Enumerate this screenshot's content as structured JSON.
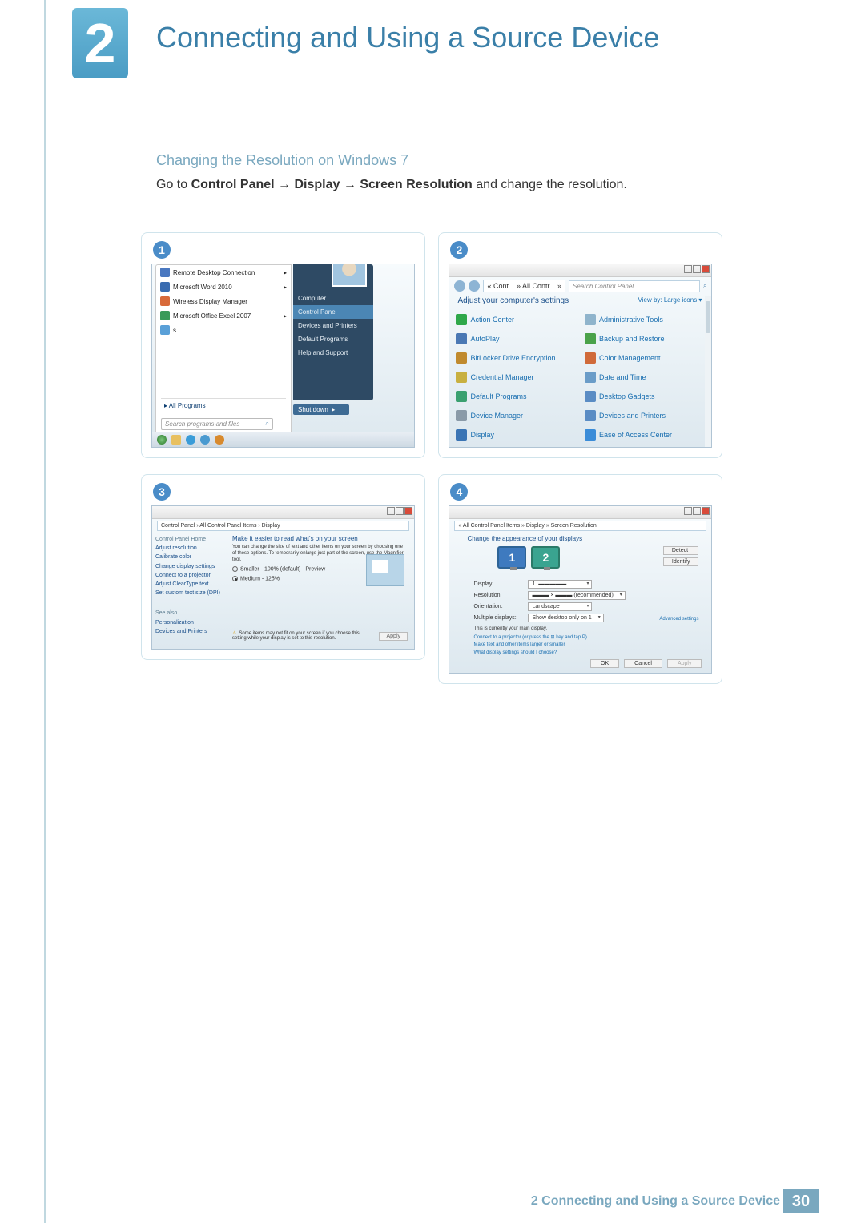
{
  "header": {
    "chapter_number": "2",
    "chapter_title": "Connecting and Using a Source Device"
  },
  "section": {
    "subtitle": "Changing the Resolution on Windows 7",
    "instruction_pre": "Go to ",
    "path_a": "Control Panel",
    "path_b": "Display",
    "path_c": "Screen Resolution",
    "instruction_post": " and change the resolution."
  },
  "steps": {
    "s1": "1",
    "s2": "2",
    "s3": "3",
    "s4": "4"
  },
  "start_menu": {
    "items": [
      "Remote Desktop Connection",
      "Microsoft Word 2010",
      "Wireless Display Manager",
      "Microsoft Office Excel 2007"
    ],
    "all_programs": "All Programs",
    "search_placeholder": "Search programs and files",
    "right": {
      "computer": "Computer",
      "control_panel": "Control Panel",
      "devices": "Devices and Printers",
      "defaults": "Default Programs",
      "help": "Help and Support"
    },
    "shutdown": "Shut down"
  },
  "control_panel": {
    "breadcrumb": "« Cont... » All Contr... »",
    "search_placeholder": "Search Control Panel",
    "heading": "Adjust your computer's settings",
    "view_by": "View by:  Large icons ▾",
    "items": [
      {
        "label": "Action Center",
        "color": "#2fa84a"
      },
      {
        "label": "Administrative Tools",
        "color": "#8fb4cc"
      },
      {
        "label": "AutoPlay",
        "color": "#4a78b4"
      },
      {
        "label": "Backup and Restore",
        "color": "#4aa24a"
      },
      {
        "label": "BitLocker Drive Encryption",
        "color": "#c08a2e"
      },
      {
        "label": "Color Management",
        "color": "#d06a3a"
      },
      {
        "label": "Credential Manager",
        "color": "#c8b040"
      },
      {
        "label": "Date and Time",
        "color": "#6a9cc8"
      },
      {
        "label": "Default Programs",
        "color": "#3aa070"
      },
      {
        "label": "Desktop Gadgets",
        "color": "#5a8cc4"
      },
      {
        "label": "Device Manager",
        "color": "#8a9aa8"
      },
      {
        "label": "Devices and Printers",
        "color": "#5a8cc4"
      },
      {
        "label": "Display",
        "color": "#3a74b4"
      },
      {
        "label": "Ease of Access Center",
        "color": "#3a8cd8"
      }
    ]
  },
  "display_panel": {
    "breadcrumb": "Control Panel › All Control Panel Items › Display",
    "side_home": "Control Panel Home",
    "side_items": [
      "Adjust resolution",
      "Calibrate color",
      "Change display settings",
      "Connect to a projector",
      "Adjust ClearType text",
      "Set custom text size (DPI)"
    ],
    "side_also": "See also",
    "side_also_items": [
      "Personalization",
      "Devices and Printers"
    ],
    "heading": "Make it easier to read what's on your screen",
    "desc": "You can change the size of text and other items on your screen by choosing one of these options. To temporarily enlarge just part of the screen, use the Magnifier tool.",
    "opt_small": "Smaller - 100% (default)",
    "opt_med": "Medium - 125%",
    "preview": "Preview",
    "warning": "Some items may not fit on your screen if you choose this setting while your display is set to this resolution.",
    "apply": "Apply"
  },
  "screen_res": {
    "breadcrumb": "« All Control Panel Items » Display » Screen Resolution",
    "heading": "Change the appearance of your displays",
    "mon1": "1",
    "mon2": "2",
    "detect": "Detect",
    "identify": "Identify",
    "fields": {
      "display_l": "Display:",
      "display_v": "1. ▬▬▬▬▬",
      "res_l": "Resolution:",
      "res_v": "▬▬▬ × ▬▬▬ (recommended)",
      "orient_l": "Orientation:",
      "orient_v": "Landscape",
      "multi_l": "Multiple displays:",
      "multi_v": "Show desktop only on 1"
    },
    "current": "This is currently your main display.",
    "advanced": "Advanced settings",
    "links": [
      "Connect to a projector (or press the ⊞ key and tap P)",
      "Make text and other items larger or smaller",
      "What display settings should I choose?"
    ],
    "ok": "OK",
    "cancel": "Cancel",
    "apply": "Apply"
  },
  "footer": {
    "chapter_ref": "2 Connecting and Using a Source Device",
    "page_num": "30"
  },
  "colors": {
    "accent": "#3a7fa8",
    "taskbar_icons": [
      "#4aa04a",
      "#5a8cc4",
      "#3a9cd8",
      "#5a8cc4",
      "#d88a2e"
    ]
  }
}
